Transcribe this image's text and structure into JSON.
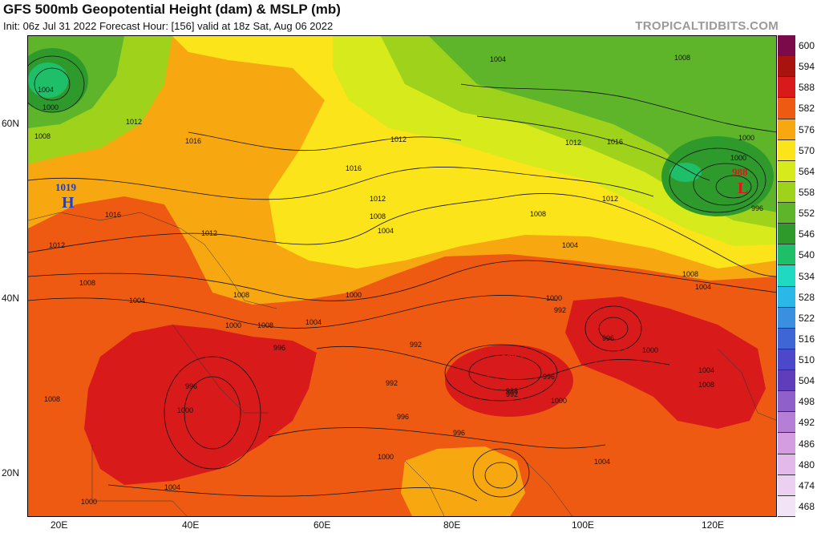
{
  "header": {
    "title": "GFS 500mb Geopotential Height (dam) & MSLP (mb)",
    "subtitle": "Init: 06z Jul 31 2022   Forecast Hour: [156]   valid at 18z Sat, Aug 06 2022",
    "brand": "TROPICALTIDBITS.COM"
  },
  "axes": {
    "lat_labels": [
      "60N",
      "40N",
      "20N"
    ],
    "lon_labels": [
      "20E",
      "40E",
      "60E",
      "80E",
      "100E",
      "120E"
    ]
  },
  "colorbar": {
    "labels": [
      "600",
      "594",
      "588",
      "582",
      "576",
      "570",
      "564",
      "558",
      "552",
      "546",
      "540",
      "534",
      "528",
      "522",
      "516",
      "510",
      "504",
      "498",
      "492",
      "486",
      "480",
      "474",
      "468"
    ],
    "colors": [
      "#7a0a4a",
      "#a8120f",
      "#d81a1a",
      "#ef5a12",
      "#f7a810",
      "#fbe41a",
      "#d7ea1c",
      "#9fd21b",
      "#5fb52a",
      "#2f9a2c",
      "#1fbf6a",
      "#1fd9c3",
      "#2bb7e8",
      "#3a8fe0",
      "#3e66d5",
      "#4b48c9",
      "#5f3dbb",
      "#8f60c9",
      "#b67fd6",
      "#d49ce1",
      "#e3b8ea",
      "#ecd0f1",
      "#f3e3f6"
    ]
  },
  "pressure_centers": [
    {
      "type": "H",
      "value": "1019"
    },
    {
      "type": "L",
      "value": "988"
    },
    {
      "type": "L",
      "value": "992"
    },
    {
      "type": "L",
      "value": "988"
    }
  ],
  "isobar_labels": [
    "1000",
    "1004",
    "1008",
    "1012",
    "1016",
    "1016",
    "1012",
    "1008",
    "1004",
    "1012",
    "1008",
    "1008",
    "1004",
    "1000",
    "996",
    "992",
    "996",
    "1008",
    "1012",
    "1016",
    "1000",
    "1004",
    "1008",
    "1012",
    "1008",
    "1004",
    "1000",
    "992",
    "996",
    "1000",
    "1004",
    "996",
    "1000",
    "988",
    "992",
    "996",
    "996",
    "1000",
    "1004",
    "1008",
    "1000",
    "1004",
    "1000",
    "1012",
    "1008",
    "1004",
    "1000",
    "1016",
    "1012",
    "1008",
    "1004",
    "1000",
    "996",
    "992"
  ]
}
